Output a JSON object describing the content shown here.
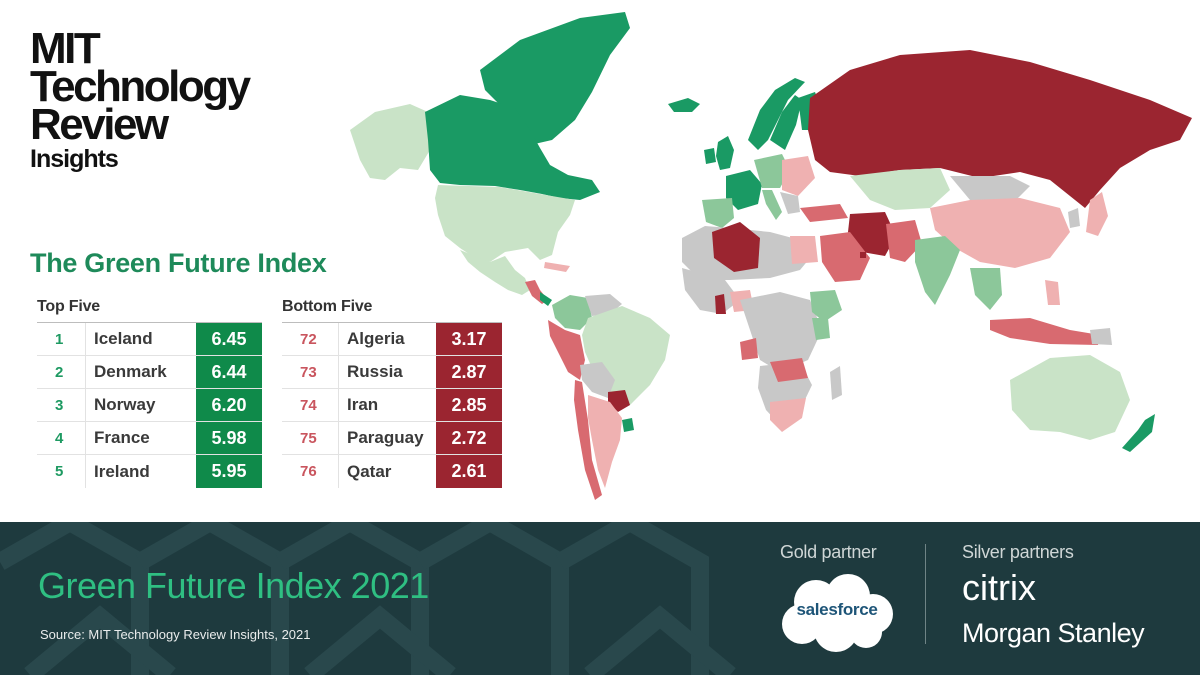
{
  "logo": {
    "line1": "MIT",
    "line2": "Technology",
    "line3": "Review",
    "line4": "Insights"
  },
  "index_title": "The Green Future Index",
  "top_five": {
    "heading": "Top Five",
    "rows": [
      {
        "rank": "1",
        "country": "Iceland",
        "score": "6.45"
      },
      {
        "rank": "2",
        "country": "Denmark",
        "score": "6.44"
      },
      {
        "rank": "3",
        "country": "Norway",
        "score": "6.20"
      },
      {
        "rank": "4",
        "country": "France",
        "score": "5.98"
      },
      {
        "rank": "5",
        "country": "Ireland",
        "score": "5.95"
      }
    ]
  },
  "bottom_five": {
    "heading": "Bottom Five",
    "rows": [
      {
        "rank": "72",
        "country": "Algeria",
        "score": "3.17"
      },
      {
        "rank": "73",
        "country": "Russia",
        "score": "2.87"
      },
      {
        "rank": "74",
        "country": "Iran",
        "score": "2.85"
      },
      {
        "rank": "75",
        "country": "Paraguay",
        "score": "2.72"
      },
      {
        "rank": "76",
        "country": "Qatar",
        "score": "2.61"
      }
    ]
  },
  "footer": {
    "title": "Green Future Index 2021",
    "source": "Source: MIT Technology Review Insights, 2021",
    "gold_label": "Gold partner",
    "silver_label": "Silver partners",
    "gold_partner": "salesforce",
    "silver_partner_1": "citrix",
    "silver_partner_2": "Morgan Stanley"
  },
  "colors": {
    "top_green": "#0f8a4a",
    "bottom_red": "#9b2530",
    "title_green": "#1e8a5a",
    "footer_bg": "#1e3a3e",
    "footer_title": "#2fbf82",
    "map_dark_green": "#1a9a64",
    "map_mid_green": "#8cc79a",
    "map_light_green": "#c9e3c7",
    "map_grey": "#c8c8c8",
    "map_light_red": "#efb1b1",
    "map_mid_red": "#d86a70",
    "map_dark_red": "#9b2530"
  }
}
